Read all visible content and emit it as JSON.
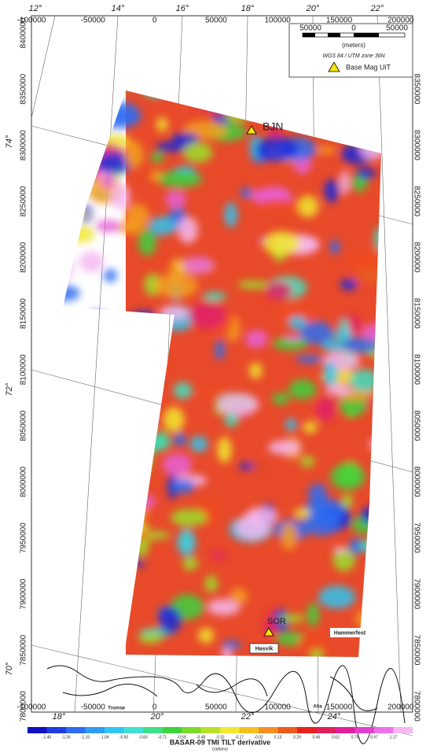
{
  "map": {
    "top_longitudes": [
      "12°",
      "14°",
      "16°",
      "18°",
      "20°",
      "22°"
    ],
    "bottom_longitudes": [
      "18°",
      "20°",
      "22°",
      "24°"
    ],
    "latitudes": [
      "74°",
      "72°",
      "70°"
    ],
    "x_ticks": [
      "-100000",
      "-50000",
      "0",
      "50000",
      "100000",
      "150000",
      "200000"
    ],
    "left_y_ticks": [
      "8400000",
      "8350000",
      "8300000",
      "8250000",
      "8200000",
      "8150000",
      "8100000",
      "8050000",
      "8000000",
      "7950000",
      "7900000",
      "7850000",
      "7800000"
    ],
    "right_y_ticks": [
      "8350000",
      "8300000",
      "8250000",
      "8200000",
      "8150000",
      "8100000",
      "8050000",
      "8000000",
      "7950000",
      "7900000",
      "7850000",
      "7800000"
    ],
    "legend": {
      "scale_labels": [
        "50000",
        "0",
        "50000"
      ],
      "units": "(meters)",
      "projection": "WGS 84 / UTM zone 36N",
      "station": "Base Mag UiT"
    },
    "places": {
      "bjn": "BJN",
      "sor": "SOR",
      "hasvik": "Hasvik",
      "hammerfest": "Hammerfest",
      "tromso": "Tromsø",
      "alta": "Alta"
    },
    "colorbar": {
      "labels": [
        "-1.40",
        "-1.26",
        "-1.15",
        "-1.04",
        "-0.93",
        "-0.83",
        "-0.71",
        "-0.59",
        "-0.48",
        "-0.32",
        "-0.17",
        "-0.02",
        "0.13",
        "0.29",
        "0.46",
        "0.62",
        "0.79",
        "0.97",
        "1.17"
      ],
      "title": "BASAR-09 TMI TILT derivative",
      "units": "(radians)"
    }
  }
}
